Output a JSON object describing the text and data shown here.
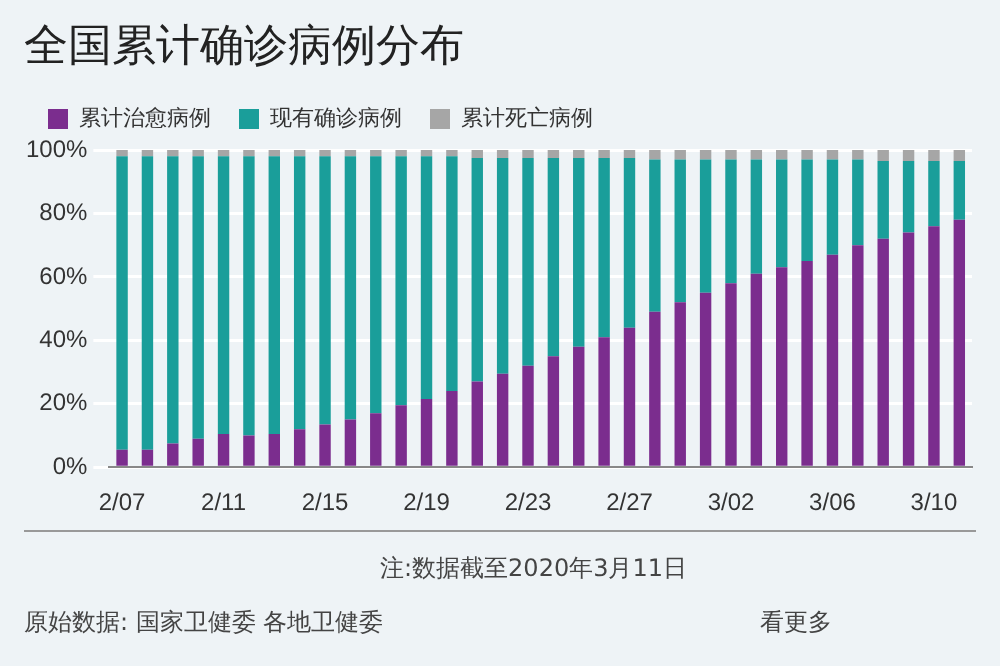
{
  "chart_data": {
    "type": "bar",
    "title": "全国累计确诊病例分布",
    "stacked": true,
    "grid": "y",
    "legend": "top left",
    "categories": [
      "2/07",
      null,
      null,
      null,
      "2/11",
      null,
      null,
      null,
      "2/15",
      null,
      null,
      null,
      "2/19",
      null,
      null,
      null,
      "2/23",
      null,
      null,
      null,
      "2/27",
      null,
      null,
      null,
      "3/02",
      null,
      null,
      null,
      "3/06",
      null,
      null,
      null,
      "3/10",
      null
    ],
    "ylim": [
      0,
      100
    ],
    "yticks": [
      {
        "value": 0,
        "label": "0%"
      },
      {
        "value": 20,
        "label": "20%"
      },
      {
        "value": 40,
        "label": "40%"
      },
      {
        "value": 60,
        "label": "60%"
      },
      {
        "value": 80,
        "label": "80%"
      },
      {
        "value": 100,
        "label": "100%"
      }
    ],
    "series": [
      {
        "name": "累计治愈病例",
        "color": "#7b2d8e",
        "values": [
          5.5,
          5.5,
          7.5,
          9,
          10.5,
          10,
          10.5,
          12,
          13.5,
          15,
          17,
          19.5,
          21.5,
          24,
          27,
          29.5,
          32,
          35,
          38,
          41,
          44,
          49,
          52,
          55,
          58,
          61,
          63,
          65,
          67,
          70,
          72,
          74,
          76,
          78
        ]
      },
      {
        "name": "现有确诊病例",
        "color": "#1a9e9a",
        "values": [
          92.5,
          92.5,
          90.5,
          89,
          87.5,
          88,
          87.5,
          86,
          84.5,
          83,
          81,
          78.5,
          76.5,
          74,
          70.5,
          68,
          65.5,
          62.5,
          59.5,
          56.5,
          53.5,
          48,
          45,
          42,
          39,
          36,
          34,
          32,
          30,
          27,
          24.5,
          22.5,
          20.5,
          18.5
        ]
      },
      {
        "name": "累计死亡病例",
        "color": "#a6a6a6",
        "values": [
          2,
          2,
          2,
          2,
          2,
          2,
          2,
          2,
          2,
          2,
          2,
          2,
          2,
          2,
          2.5,
          2.5,
          2.5,
          2.5,
          2.5,
          2.5,
          2.5,
          3,
          3,
          3,
          3,
          3,
          3,
          3,
          3,
          3,
          3.5,
          3.5,
          3.5,
          3.5
        ]
      }
    ],
    "annotations": [
      "注:数据截至2020年3月11日",
      "原始数据: 国家卫健委 各地卫健委",
      "看更多"
    ]
  }
}
